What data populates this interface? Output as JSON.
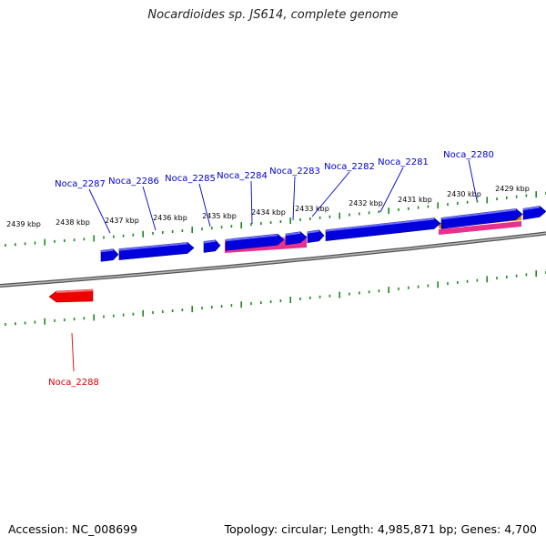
{
  "title": "Nocardioides sp. JS614, complete genome",
  "footer": {
    "accession": "Accession: NC_008699",
    "summary": "Topology: circular; Length: 4,985,871 bp; Genes: 4,700"
  },
  "scale_labels": [
    "2439 kbp",
    "2438 kbp",
    "2437 kbp",
    "2436 kbp",
    "2435 kbp",
    "2434 kbp",
    "2433 kbp",
    "2432 kbp",
    "2431 kbp",
    "2430 kbp",
    "2429 kbp"
  ],
  "genes": [
    {
      "name": "Noca_2287",
      "strand": "forward",
      "color": "#0000dd"
    },
    {
      "name": "Noca_2286",
      "strand": "forward",
      "color": "#0000dd"
    },
    {
      "name": "Noca_2285",
      "strand": "forward",
      "color": "#0000dd"
    },
    {
      "name": "Noca_2284",
      "strand": "forward",
      "color": "#0000dd"
    },
    {
      "name": "Noca_2283",
      "strand": "forward",
      "color": "#0000dd"
    },
    {
      "name": "Noca_2282",
      "strand": "forward",
      "color": "#0000dd"
    },
    {
      "name": "Noca_2281",
      "strand": "forward",
      "color": "#0000dd"
    },
    {
      "name": "Noca_2280",
      "strand": "forward",
      "color": "#0000dd"
    },
    {
      "name": "Noca_2288",
      "strand": "reverse",
      "color": "#ee0000"
    }
  ],
  "colors": {
    "forward_label": "#0000cc",
    "reverse_label": "#dd0000",
    "tick": "#1a8a1a",
    "backbone": "#808080",
    "feature_magenta": "#e8308f",
    "feature_orange": "#f08a00"
  }
}
